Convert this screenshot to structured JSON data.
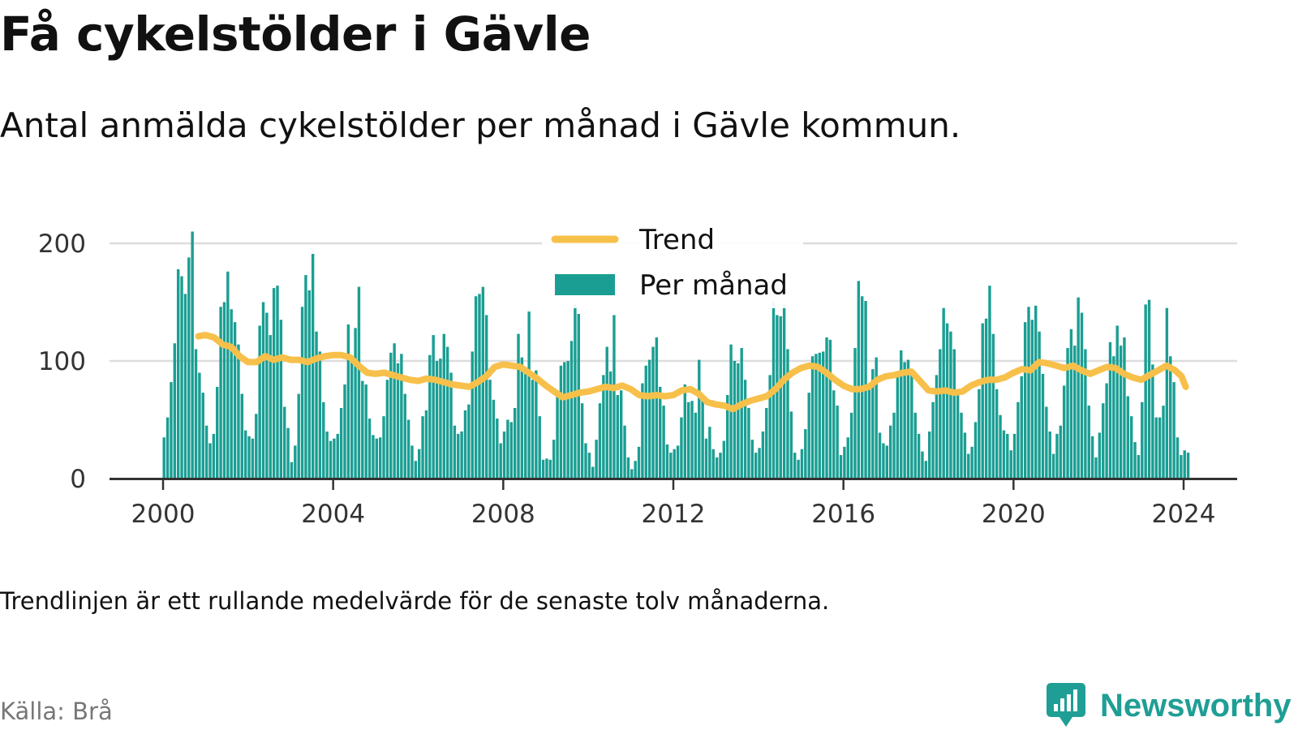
{
  "header": {
    "title": "Få cykelstölder i Gävle",
    "subtitle": "Antal anmälda cykelstölder per månad i Gävle kommun."
  },
  "footer": {
    "note": "Trendlinjen är ett rullande medelvärde för de senaste tolv månaderna.",
    "source": "Källa: Brå",
    "brand": "Newsworthy"
  },
  "colors": {
    "bars": "#1a9e93",
    "trend": "#f7c04a",
    "grid": "#dddddd",
    "axis": "#333333",
    "brand": "#1f9e95"
  },
  "chart_data": {
    "type": "bar",
    "legend": {
      "placement": "top-center",
      "entries": [
        "Trend",
        "Per månad"
      ]
    },
    "x_ticks": [
      "2000",
      "2004",
      "2008",
      "2012",
      "2016",
      "2020",
      "2024"
    ],
    "y_ticks": [
      "0",
      "100",
      "200"
    ],
    "xlim": [
      2000,
      2024.6
    ],
    "ylim": [
      0,
      210
    ],
    "grid": true,
    "series": [
      {
        "name": "Per månad",
        "type": "bar",
        "start": "2000-01",
        "frequency": "monthly",
        "values": [
          35,
          52,
          82,
          115,
          178,
          172,
          157,
          188,
          210,
          110,
          90,
          73,
          45,
          30,
          38,
          78,
          146,
          150,
          176,
          144,
          133,
          114,
          72,
          41,
          36,
          34,
          55,
          130,
          150,
          141,
          122,
          162,
          164,
          135,
          61,
          43,
          14,
          28,
          72,
          146,
          173,
          160,
          191,
          125,
          108,
          65,
          40,
          32,
          34,
          38,
          60,
          80,
          131,
          101,
          128,
          163,
          83,
          80,
          51,
          37,
          34,
          35,
          53,
          84,
          107,
          115,
          98,
          106,
          72,
          50,
          28,
          15,
          25,
          53,
          58,
          105,
          122,
          100,
          102,
          123,
          112,
          90,
          45,
          38,
          40,
          58,
          63,
          108,
          155,
          157,
          163,
          139,
          84,
          67,
          51,
          30,
          40,
          50,
          48,
          60,
          123,
          103,
          89,
          142,
          84,
          92,
          53,
          16,
          17,
          16,
          33,
          72,
          96,
          99,
          100,
          117,
          148,
          140,
          64,
          30,
          22,
          10,
          33,
          64,
          88,
          112,
          91,
          139,
          71,
          75,
          45,
          18,
          8,
          15,
          27,
          81,
          96,
          101,
          112,
          120,
          78,
          62,
          29,
          22,
          25,
          28,
          52,
          80,
          65,
          66,
          56,
          101,
          71,
          34,
          44,
          25,
          18,
          22,
          32,
          71,
          114,
          100,
          98,
          111,
          84,
          60,
          33,
          22,
          26,
          40,
          60,
          88,
          150,
          139,
          138,
          148,
          110,
          57,
          22,
          16,
          25,
          42,
          73,
          104,
          106,
          107,
          108,
          120,
          118,
          75,
          62,
          20,
          27,
          35,
          56,
          111,
          168,
          155,
          151,
          80,
          93,
          103,
          39,
          30,
          28,
          45,
          56,
          91,
          109,
          99,
          101,
          93,
          56,
          38,
          23,
          15,
          40,
          65,
          88,
          110,
          145,
          132,
          125,
          110,
          74,
          56,
          39,
          21,
          27,
          48,
          76,
          132,
          136,
          164,
          123,
          76,
          54,
          41,
          38,
          24,
          38,
          65,
          87,
          133,
          146,
          135,
          147,
          125,
          89,
          61,
          40,
          21,
          38,
          45,
          79,
          111,
          127,
          113,
          154,
          141,
          110,
          62,
          36,
          18,
          39,
          64,
          81,
          116,
          104,
          130,
          113,
          120,
          70,
          53,
          31,
          20,
          65,
          148,
          152,
          97,
          52,
          52,
          62,
          145,
          104,
          82,
          35,
          20,
          24,
          22
        ]
      },
      {
        "name": "Trend",
        "type": "line",
        "points": [
          [
            2000.83,
            121
          ],
          [
            2001.0,
            122
          ],
          [
            2001.2,
            120
          ],
          [
            2001.4,
            114
          ],
          [
            2001.6,
            112
          ],
          [
            2001.8,
            104
          ],
          [
            2002.0,
            99
          ],
          [
            2002.2,
            99
          ],
          [
            2002.4,
            104
          ],
          [
            2002.6,
            101
          ],
          [
            2002.8,
            103
          ],
          [
            2003.0,
            101
          ],
          [
            2003.2,
            101
          ],
          [
            2003.4,
            99
          ],
          [
            2003.6,
            102
          ],
          [
            2003.8,
            104
          ],
          [
            2004.0,
            105
          ],
          [
            2004.2,
            105
          ],
          [
            2004.4,
            103
          ],
          [
            2004.6,
            96
          ],
          [
            2004.8,
            90
          ],
          [
            2005.0,
            89
          ],
          [
            2005.2,
            90
          ],
          [
            2005.4,
            88
          ],
          [
            2005.6,
            86
          ],
          [
            2005.8,
            84
          ],
          [
            2006.0,
            83
          ],
          [
            2006.2,
            85
          ],
          [
            2006.4,
            84
          ],
          [
            2006.6,
            82
          ],
          [
            2006.8,
            80
          ],
          [
            2007.0,
            79
          ],
          [
            2007.2,
            78
          ],
          [
            2007.4,
            82
          ],
          [
            2007.6,
            87
          ],
          [
            2007.8,
            95
          ],
          [
            2008.0,
            97
          ],
          [
            2008.2,
            96
          ],
          [
            2008.4,
            95
          ],
          [
            2008.6,
            90
          ],
          [
            2008.8,
            85
          ],
          [
            2009.0,
            79
          ],
          [
            2009.2,
            74
          ],
          [
            2009.4,
            69
          ],
          [
            2009.6,
            71
          ],
          [
            2009.8,
            73
          ],
          [
            2010.0,
            74
          ],
          [
            2010.2,
            76
          ],
          [
            2010.4,
            78
          ],
          [
            2010.6,
            77
          ],
          [
            2010.8,
            79
          ],
          [
            2011.0,
            76
          ],
          [
            2011.2,
            71
          ],
          [
            2011.4,
            70
          ],
          [
            2011.6,
            71
          ],
          [
            2011.8,
            70
          ],
          [
            2012.0,
            71
          ],
          [
            2012.2,
            75
          ],
          [
            2012.4,
            76
          ],
          [
            2012.6,
            72
          ],
          [
            2012.8,
            65
          ],
          [
            2013.0,
            63
          ],
          [
            2013.2,
            62
          ],
          [
            2013.4,
            59
          ],
          [
            2013.6,
            63
          ],
          [
            2013.8,
            66
          ],
          [
            2014.0,
            68
          ],
          [
            2014.2,
            70
          ],
          [
            2014.4,
            76
          ],
          [
            2014.6,
            84
          ],
          [
            2014.8,
            90
          ],
          [
            2015.0,
            94
          ],
          [
            2015.2,
            96
          ],
          [
            2015.4,
            95
          ],
          [
            2015.6,
            90
          ],
          [
            2015.8,
            84
          ],
          [
            2016.0,
            79
          ],
          [
            2016.2,
            76
          ],
          [
            2016.4,
            76
          ],
          [
            2016.6,
            78
          ],
          [
            2016.8,
            84
          ],
          [
            2017.0,
            87
          ],
          [
            2017.2,
            88
          ],
          [
            2017.4,
            90
          ],
          [
            2017.6,
            91
          ],
          [
            2017.8,
            83
          ],
          [
            2018.0,
            75
          ],
          [
            2018.2,
            74
          ],
          [
            2018.4,
            75
          ],
          [
            2018.6,
            73
          ],
          [
            2018.8,
            74
          ],
          [
            2019.0,
            79
          ],
          [
            2019.2,
            82
          ],
          [
            2019.4,
            84
          ],
          [
            2019.6,
            84
          ],
          [
            2019.8,
            86
          ],
          [
            2020.0,
            90
          ],
          [
            2020.2,
            93
          ],
          [
            2020.4,
            92
          ],
          [
            2020.6,
            99
          ],
          [
            2020.8,
            98
          ],
          [
            2021.0,
            96
          ],
          [
            2021.2,
            94
          ],
          [
            2021.4,
            96
          ],
          [
            2021.6,
            92
          ],
          [
            2021.8,
            89
          ],
          [
            2022.0,
            92
          ],
          [
            2022.2,
            95
          ],
          [
            2022.4,
            94
          ],
          [
            2022.6,
            89
          ],
          [
            2022.8,
            86
          ],
          [
            2023.0,
            84
          ],
          [
            2023.2,
            88
          ],
          [
            2023.4,
            92
          ],
          [
            2023.6,
            96
          ],
          [
            2023.8,
            92
          ],
          [
            2023.95,
            87
          ],
          [
            2024.05,
            78
          ]
        ]
      }
    ]
  }
}
